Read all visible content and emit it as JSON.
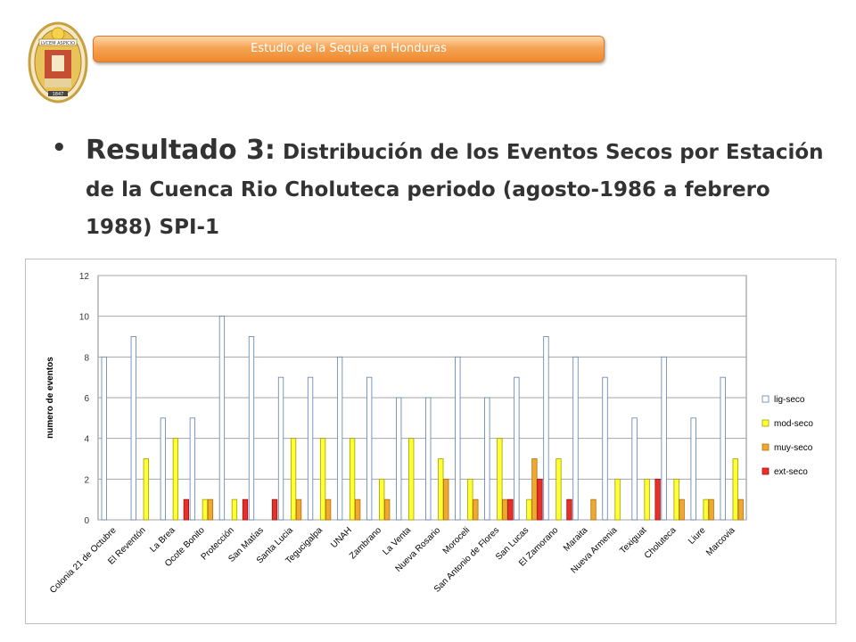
{
  "header": {
    "banner_text": "Estudio de  la Sequia en Honduras",
    "logo_text": "LVCEM ASPICIO",
    "logo_year": "1847"
  },
  "heading": {
    "bullet": "•",
    "lead": "Resultado 3:",
    "text": " Distribución de los Eventos Secos por Estación de la Cuenca Rio Choluteca periodo (agosto-1986 a febrero 1988) SPI-1"
  },
  "colors": {
    "lig-seco": "#ffffff",
    "lig-seco-stroke": "#5b7fb0",
    "mod-seco": "#ffff33",
    "muy-seco": "#f0a830",
    "ext-seco": "#e8302a",
    "banner": "#f5a454"
  },
  "chart_data": {
    "type": "bar",
    "title": "",
    "xlabel": "",
    "ylabel": "numero de eventos",
    "ylim": [
      0,
      12
    ],
    "yticks": [
      0,
      2,
      4,
      6,
      8,
      10,
      12
    ],
    "grid": true,
    "legend_position": "right",
    "categories": [
      "Colonia 21 de Octubre",
      "El Reventón",
      "La Brea",
      "Ocote Bonito",
      "Protección",
      "San Matías",
      "Santa Lucia",
      "Tegucigalpa",
      "UNAH",
      "Zambrano",
      "La Venta",
      "Nueva Rosario",
      "Moroceli",
      "San Antonio de Flores",
      "San Lucas",
      "El Zamorano",
      "Maraita",
      "Nueva Armenia",
      "Texiguat",
      "Choluteca",
      "Liure",
      "Marcovia"
    ],
    "series": [
      {
        "name": "lig-seco",
        "values": [
          8,
          9,
          5,
          5,
          10,
          9,
          7,
          7,
          8,
          7,
          6,
          6,
          8,
          6,
          7,
          9,
          8,
          7,
          5,
          8,
          5,
          7
        ]
      },
      {
        "name": "mod-seco",
        "values": [
          0,
          3,
          4,
          1,
          1,
          0,
          4,
          4,
          4,
          2,
          4,
          3,
          2,
          4,
          1,
          3,
          0,
          2,
          2,
          2,
          1,
          3
        ]
      },
      {
        "name": "muy-seco",
        "values": [
          0,
          0,
          0,
          1,
          0,
          0,
          1,
          1,
          1,
          1,
          0,
          2,
          1,
          1,
          3,
          0,
          1,
          0,
          0,
          1,
          1,
          1
        ]
      },
      {
        "name": "ext-seco",
        "values": [
          0,
          0,
          1,
          0,
          1,
          1,
          0,
          0,
          0,
          0,
          0,
          0,
          0,
          1,
          2,
          1,
          0,
          0,
          2,
          0,
          0,
          0
        ]
      }
    ]
  }
}
